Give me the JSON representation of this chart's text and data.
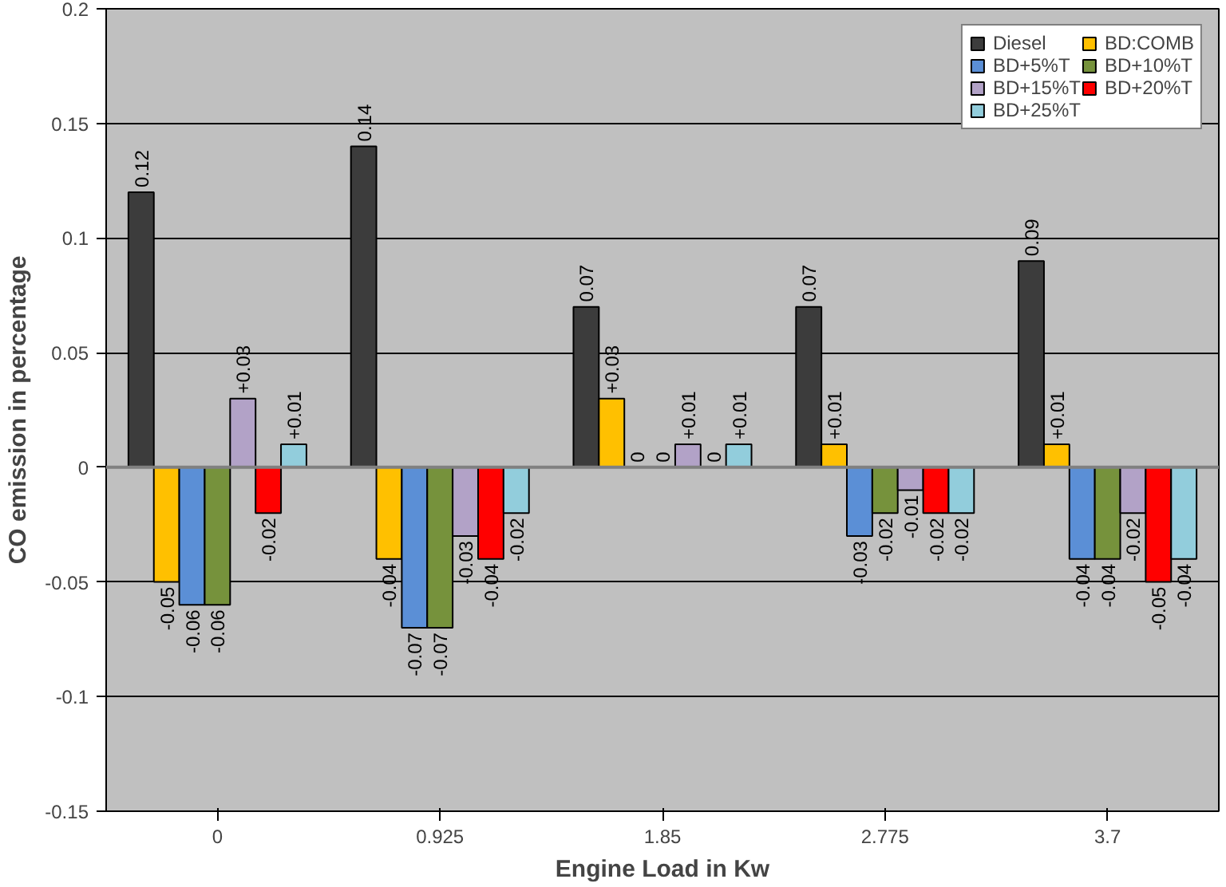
{
  "chart_data": {
    "type": "bar",
    "xlabel": "Engine Load in Kw",
    "ylabel": "CO emission in percentage",
    "categories": [
      "0",
      "0.925",
      "1.85",
      "2.775",
      "3.7"
    ],
    "ylim": [
      -0.15,
      0.2
    ],
    "yticks": [
      -0.15,
      -0.1,
      -0.05,
      0,
      0.05,
      0.1,
      0.15,
      0.2
    ],
    "grid": "y",
    "legend": "top right",
    "series": [
      {
        "name": "Diesel",
        "color": "#3c3c3c",
        "values": [
          0.12,
          0.14,
          0.07,
          0.07,
          0.09
        ],
        "value_labels": [
          "0.12",
          "0.14",
          "0.07",
          "0.07",
          "0.09"
        ]
      },
      {
        "name": "BD:COMB",
        "color": "#ffc000",
        "values": [
          -0.05,
          -0.04,
          0.03,
          0.01,
          0.01
        ],
        "value_labels": [
          "-0.05",
          "-0.04",
          "+0.03",
          "+0.01",
          "+0.01"
        ]
      },
      {
        "name": "BD+5%T",
        "color": "#5b8fd6",
        "values": [
          -0.06,
          -0.07,
          0,
          -0.03,
          -0.04
        ],
        "value_labels": [
          "-0.06",
          "-0.07",
          "0",
          "-0.03",
          "-0.04"
        ]
      },
      {
        "name": "BD+10%T",
        "color": "#76923c",
        "values": [
          -0.06,
          -0.07,
          0,
          -0.02,
          -0.04
        ],
        "value_labels": [
          "-0.06",
          "-0.07",
          "0",
          "-0.02",
          "-0.04"
        ]
      },
      {
        "name": "BD+15%T",
        "color": "#b2a2c7",
        "values": [
          0.03,
          -0.03,
          0.01,
          -0.01,
          -0.02
        ],
        "value_labels": [
          "+0.03",
          "-0.03",
          "+0.01",
          "-0.01",
          "-0.02"
        ]
      },
      {
        "name": "BD+20%T",
        "color": "#ff0000",
        "values": [
          -0.02,
          -0.04,
          0,
          -0.02,
          -0.05
        ],
        "value_labels": [
          "-0.02",
          "-0.04",
          "0",
          "-0.02",
          "-0.05"
        ]
      },
      {
        "name": "BD+25%T",
        "color": "#92cddc",
        "values": [
          0.01,
          -0.02,
          0.01,
          -0.02,
          -0.04
        ],
        "value_labels": [
          "+0.01",
          "-0.02",
          "+0.01",
          "-0.02",
          "-0.04"
        ]
      }
    ]
  }
}
